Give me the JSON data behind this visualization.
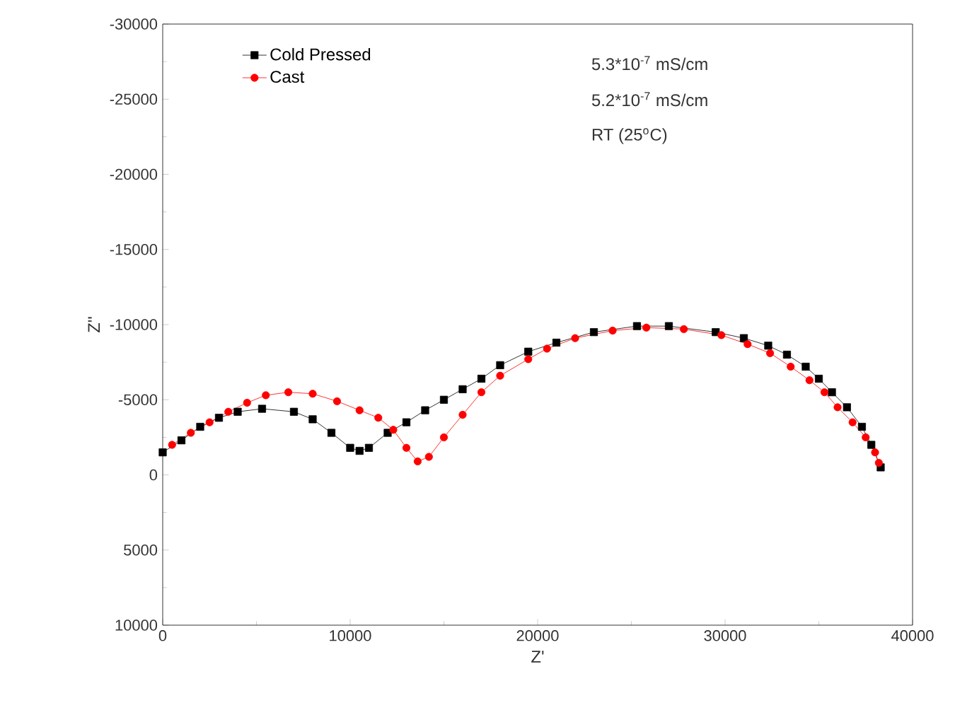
{
  "chart_data": {
    "type": "line",
    "xlabel": "Z'",
    "ylabel": "Z''",
    "xlim": [
      0,
      40000
    ],
    "xticks": [
      0,
      10000,
      20000,
      30000,
      40000
    ],
    "ylim": [
      10000,
      -30000
    ],
    "yticks": [
      -30000,
      -25000,
      -20000,
      -15000,
      -10000,
      -5000,
      0,
      5000,
      10000
    ],
    "legend": "top left",
    "annotations": [
      "5.3*10$^{-7}$ mS/cm",
      "5.2*10$^{-7}$ mS/cm",
      "RT (25$^{o}$C)"
    ],
    "series": [
      {
        "name": "Cold Pressed",
        "color": "#000000",
        "marker": "square",
        "x": [
          0,
          1000,
          2000,
          3000,
          4000,
          5300,
          7000,
          8000,
          9000,
          10000,
          10500,
          11000,
          12000,
          13000,
          14000,
          15000,
          16000,
          17000,
          18000,
          19500,
          21000,
          23000,
          25300,
          27000,
          29500,
          31000,
          32300,
          33300,
          34300,
          35000,
          35700,
          36500,
          37300,
          37800,
          38300
        ],
        "values": [
          -1500,
          -2300,
          -3200,
          -3800,
          -4200,
          -4400,
          -4200,
          -3700,
          -2800,
          -1800,
          -1600,
          -1800,
          -2800,
          -3500,
          -4300,
          -5000,
          -5700,
          -6400,
          -7300,
          -8200,
          -8800,
          -9500,
          -9900,
          -9900,
          -9500,
          -9100,
          -8600,
          -8000,
          -7200,
          -6400,
          -5500,
          -4500,
          -3200,
          -2000,
          -500
        ]
      },
      {
        "name": "Cast",
        "color": "#ff0000",
        "marker": "circle",
        "x": [
          500,
          1500,
          2500,
          3500,
          4500,
          5500,
          6700,
          8000,
          9300,
          10500,
          11500,
          12300,
          13000,
          13600,
          14200,
          15000,
          16000,
          17000,
          18000,
          19500,
          20500,
          22000,
          24000,
          25800,
          27800,
          29800,
          31200,
          32400,
          33500,
          34500,
          35300,
          36000,
          36800,
          37500,
          38000,
          38200
        ],
        "values": [
          -2000,
          -2800,
          -3500,
          -4200,
          -4800,
          -5300,
          -5500,
          -5400,
          -4900,
          -4300,
          -3800,
          -3000,
          -1800,
          -900,
          -1200,
          -2500,
          -4000,
          -5500,
          -6600,
          -7700,
          -8400,
          -9100,
          -9600,
          -9800,
          -9700,
          -9300,
          -8700,
          -8100,
          -7200,
          -6300,
          -5500,
          -4500,
          -3500,
          -2500,
          -1500,
          -800
        ]
      }
    ]
  }
}
